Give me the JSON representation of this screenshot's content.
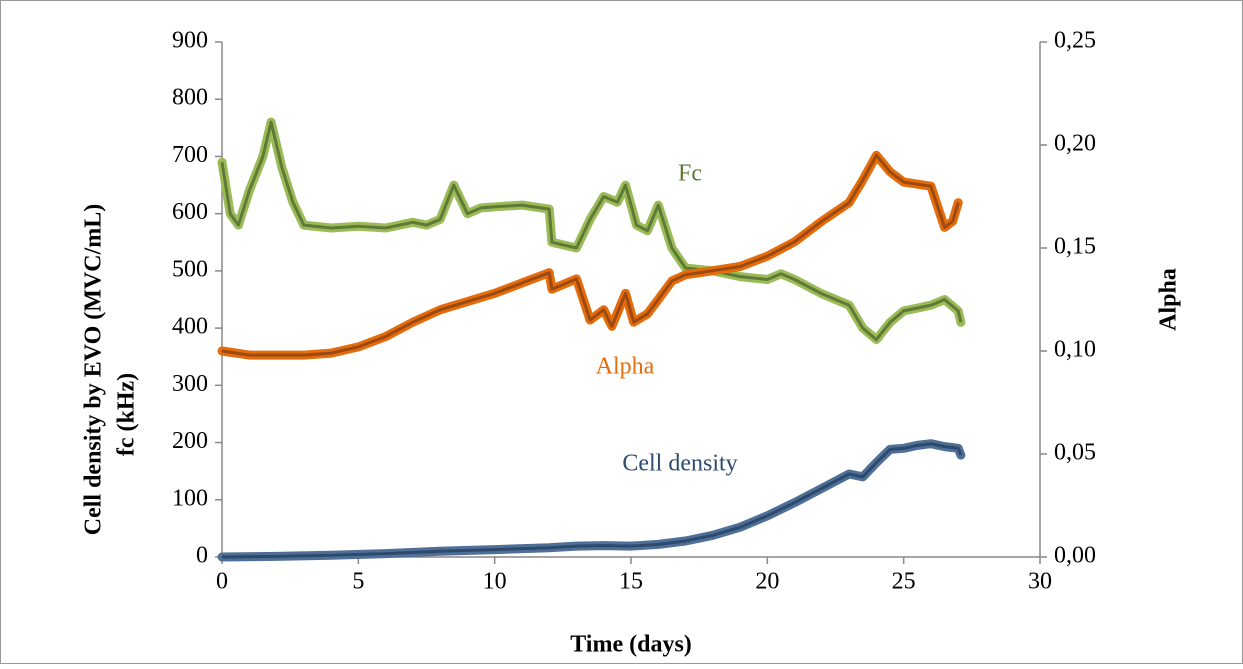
{
  "chart_data": {
    "type": "line",
    "xlabel": "Time (days)",
    "ylabel": [
      "Cell density by EVO (MVC/mL)",
      "fc (kHz)"
    ],
    "y2label": "Alpha",
    "xlim": [
      0,
      30
    ],
    "xticks": [
      0,
      5,
      10,
      15,
      20,
      25,
      30
    ],
    "ylim": [
      0,
      900
    ],
    "yticks": [
      0,
      100,
      200,
      300,
      400,
      500,
      600,
      700,
      800,
      900
    ],
    "y2lim": [
      0,
      0.25
    ],
    "y2ticks": [
      {
        "value": 0,
        "label": "0,00"
      },
      {
        "value": 0.05,
        "label": "0,05"
      },
      {
        "value": 0.1,
        "label": "0,10"
      },
      {
        "value": 0.15,
        "label": "0,15"
      },
      {
        "value": 0.2,
        "label": "0,20"
      },
      {
        "value": 0.25,
        "label": "0,25"
      }
    ],
    "series": [
      {
        "name": "Cell density",
        "color": "#4f6f96",
        "x": [
          0,
          2,
          4,
          6,
          8,
          10,
          12,
          13,
          14,
          15,
          16,
          17,
          18,
          19,
          20,
          21,
          22,
          23,
          23.5,
          24,
          24.5,
          25,
          25.5,
          26,
          26.5,
          27,
          27.1
        ],
        "values": [
          0,
          1,
          3,
          6,
          10,
          13,
          16,
          19,
          20,
          19,
          22,
          28,
          38,
          52,
          72,
          95,
          120,
          145,
          140,
          165,
          188,
          190,
          195,
          198,
          193,
          190,
          178
        ]
      },
      {
        "name": "Fc",
        "color": "#9bbb59",
        "x": [
          0,
          0.3,
          0.6,
          1,
          1.5,
          1.8,
          2.2,
          2.6,
          3,
          4,
          5,
          6,
          7,
          7.5,
          8,
          8.5,
          9,
          9.5,
          10,
          11,
          12,
          12.1,
          13,
          13.5,
          14,
          14.5,
          14.8,
          15.2,
          15.6,
          16,
          16.5,
          17,
          18,
          19,
          20,
          20.5,
          21,
          22,
          23,
          23.5,
          24,
          24.5,
          25,
          25.5,
          26,
          26.5,
          27,
          27.1
        ],
        "values": [
          690,
          600,
          580,
          640,
          700,
          760,
          680,
          620,
          580,
          575,
          578,
          575,
          585,
          580,
          590,
          650,
          600,
          610,
          612,
          615,
          608,
          550,
          540,
          590,
          630,
          620,
          650,
          580,
          570,
          615,
          540,
          505,
          500,
          490,
          485,
          495,
          485,
          460,
          440,
          400,
          380,
          410,
          430,
          435,
          440,
          450,
          430,
          410
        ]
      },
      {
        "name": "Alpha",
        "color": "#e46c0a",
        "axis": "y2",
        "x": [
          0,
          1,
          3,
          4,
          5,
          6,
          7,
          8,
          9,
          10,
          11,
          12,
          12.1,
          13,
          13.5,
          14,
          14.3,
          14.8,
          15.1,
          15.6,
          16,
          16.5,
          17,
          18,
          19,
          20,
          21,
          22,
          23,
          23.5,
          24,
          24.5,
          25,
          26,
          26.5,
          26.8,
          27
        ],
        "values": [
          0.1,
          0.098,
          0.098,
          0.099,
          0.102,
          0.107,
          0.114,
          0.12,
          0.124,
          0.128,
          0.133,
          0.138,
          0.13,
          0.135,
          0.115,
          0.12,
          0.112,
          0.128,
          0.114,
          0.118,
          0.125,
          0.134,
          0.137,
          0.139,
          0.141,
          0.146,
          0.153,
          0.163,
          0.172,
          0.183,
          0.195,
          0.187,
          0.182,
          0.18,
          0.16,
          0.163,
          0.172
        ]
      }
    ]
  }
}
